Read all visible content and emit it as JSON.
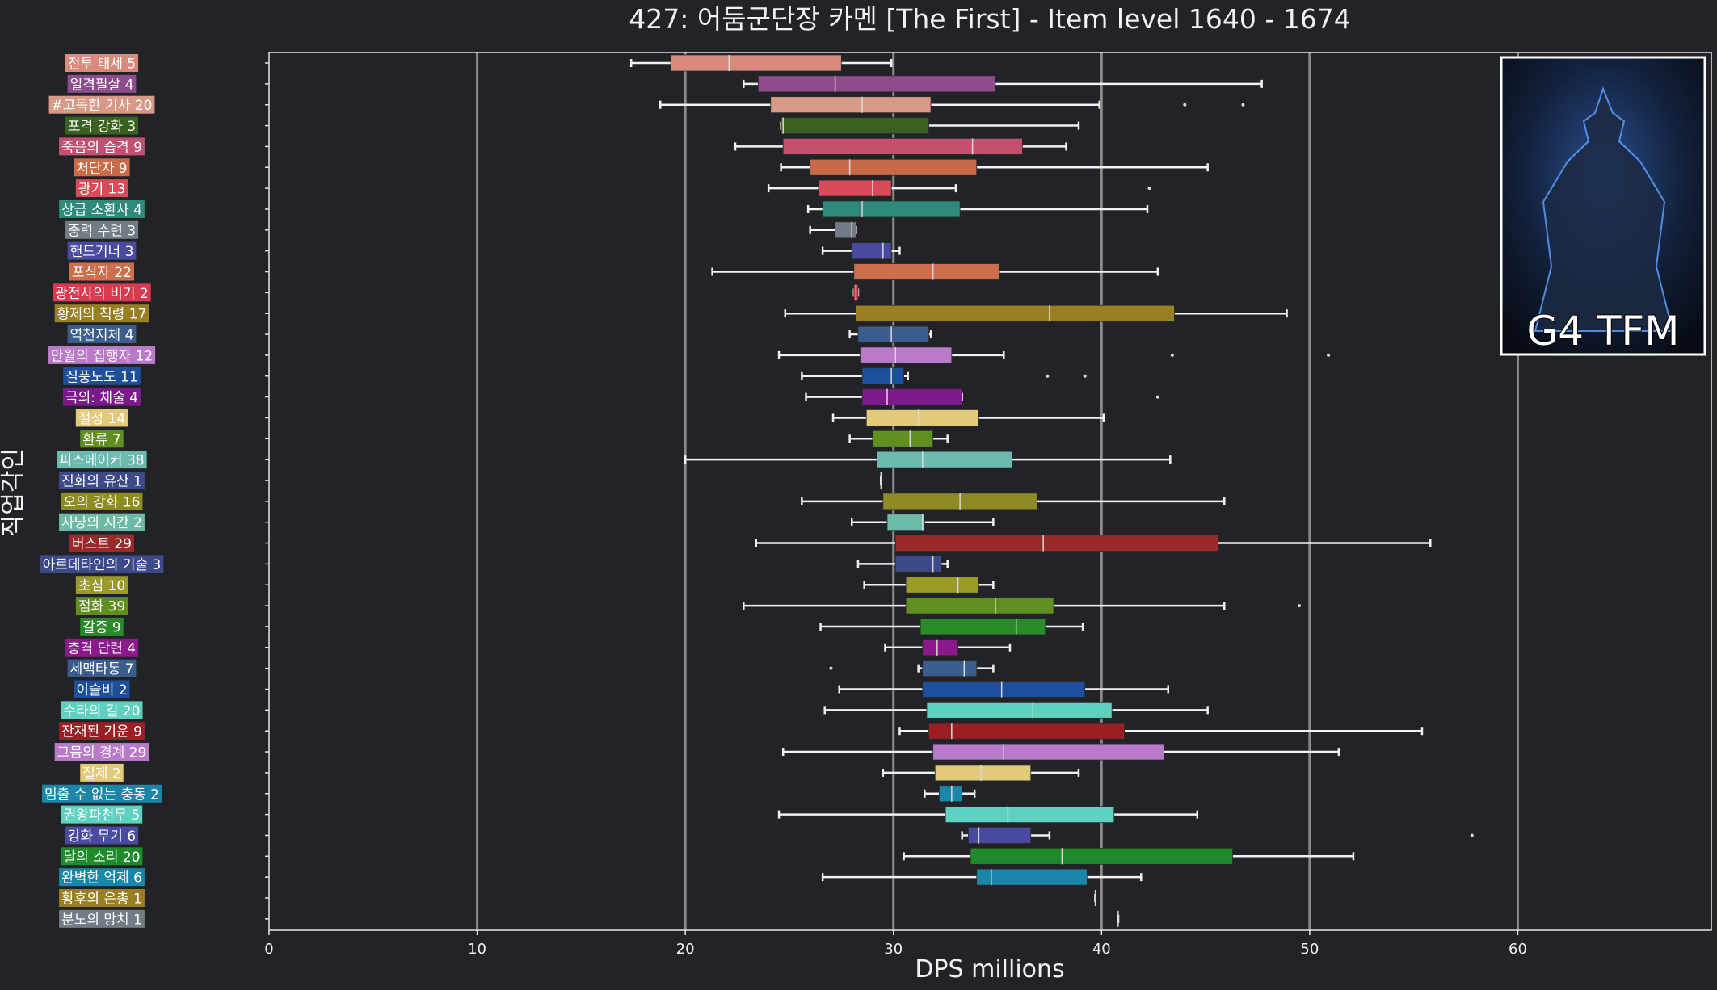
{
  "chart_data": {
    "type": "boxplot",
    "title": "427: 어둠군단장 카멘 [The First] - Item level 1640 - 1674",
    "xlabel": "DPS millions",
    "ylabel": "직업각인",
    "xlim": [
      0,
      69.3
    ],
    "xticks": [
      0,
      10,
      20,
      30,
      40,
      50,
      60
    ],
    "grid": "vertical",
    "badge_text": "G4 TFM",
    "rows": [
      {
        "label": "전투 태세 5",
        "color": "#d98a7c",
        "q1": 19.3,
        "median": 22.1,
        "q3": 27.5,
        "whislo": 17.4,
        "whishi": 29.9,
        "fliers": []
      },
      {
        "label": "일격필살 4",
        "color": "#8e4c8c",
        "q1": 23.5,
        "median": 27.2,
        "q3": 34.9,
        "whislo": 22.8,
        "whishi": 47.7,
        "fliers": []
      },
      {
        "label": "#고독한 기사 20",
        "color": "#d89a87",
        "q1": 24.1,
        "median": 28.5,
        "q3": 31.8,
        "whislo": 18.8,
        "whishi": 39.9,
        "fliers": [
          44.0,
          46.8
        ]
      },
      {
        "label": "포격 강화 3",
        "color": "#39611f",
        "q1": 24.6,
        "median": 24.7,
        "q3": 31.7,
        "whislo": 24.6,
        "whishi": 38.9,
        "fliers": []
      },
      {
        "label": "죽음의 습격 9",
        "color": "#c2506f",
        "q1": 24.7,
        "median": 33.8,
        "q3": 36.2,
        "whislo": 22.4,
        "whishi": 38.3,
        "fliers": []
      },
      {
        "label": "처단자 9",
        "color": "#c96b47",
        "q1": 26.0,
        "median": 27.9,
        "q3": 34.0,
        "whislo": 24.6,
        "whishi": 45.1,
        "fliers": []
      },
      {
        "label": "광기 13",
        "color": "#d94a5a",
        "q1": 26.4,
        "median": 29.0,
        "q3": 29.9,
        "whislo": 24.0,
        "whishi": 33.0,
        "fliers": [
          42.3
        ]
      },
      {
        "label": "상급 소환사 4",
        "color": "#2e8a7a",
        "q1": 26.6,
        "median": 28.5,
        "q3": 33.2,
        "whislo": 25.9,
        "whishi": 42.2,
        "fliers": []
      },
      {
        "label": "중력 수련 3",
        "color": "#737c86",
        "q1": 27.2,
        "median": 28.0,
        "q3": 28.2,
        "whislo": 26.0,
        "whishi": 28.2,
        "fliers": []
      },
      {
        "label": "핸드거너 3",
        "color": "#4a4aa0",
        "q1": 28.0,
        "median": 29.5,
        "q3": 29.9,
        "whislo": 26.6,
        "whishi": 30.3,
        "fliers": []
      },
      {
        "label": "포식자 22",
        "color": "#cc6f4d",
        "q1": 28.1,
        "median": 31.9,
        "q3": 35.1,
        "whislo": 21.3,
        "whishi": 42.7,
        "fliers": []
      },
      {
        "label": "광전사의 비기 2",
        "color": "#d93a50",
        "q1": 28.1,
        "median": 28.2,
        "q3": 28.3,
        "whislo": 28.1,
        "whishi": 28.3,
        "fliers": []
      },
      {
        "label": "황제의 칙령 17",
        "color": "#9a7e24",
        "q1": 28.2,
        "median": 37.5,
        "q3": 43.5,
        "whislo": 24.8,
        "whishi": 48.9,
        "fliers": []
      },
      {
        "label": "역천지체 4",
        "color": "#3b5d8e",
        "q1": 28.3,
        "median": 29.9,
        "q3": 31.7,
        "whislo": 27.9,
        "whishi": 31.8,
        "fliers": []
      },
      {
        "label": "만월의 집행자 12",
        "color": "#b87ac9",
        "q1": 28.4,
        "median": 30.1,
        "q3": 32.8,
        "whislo": 24.5,
        "whishi": 35.3,
        "fliers": [
          43.4,
          50.9
        ]
      },
      {
        "label": "질풍노도 11",
        "color": "#1d4f9c",
        "q1": 28.5,
        "median": 29.9,
        "q3": 30.5,
        "whislo": 25.6,
        "whishi": 30.7,
        "fliers": [
          37.4,
          39.2
        ]
      },
      {
        "label": "극의: 체술 4",
        "color": "#7c1a8c",
        "q1": 28.5,
        "median": 29.7,
        "q3": 33.3,
        "whislo": 25.8,
        "whishi": 33.3,
        "fliers": [
          42.7
        ]
      },
      {
        "label": "절정 14",
        "color": "#e3c97a",
        "q1": 28.7,
        "median": 31.2,
        "q3": 34.1,
        "whislo": 27.1,
        "whishi": 40.1,
        "fliers": []
      },
      {
        "label": "환류 7",
        "color": "#5f8f1f",
        "q1": 29.0,
        "median": 30.8,
        "q3": 31.9,
        "whislo": 27.9,
        "whishi": 32.6,
        "fliers": []
      },
      {
        "label": "피스메이커 38",
        "color": "#6dbab0",
        "q1": 29.2,
        "median": 31.4,
        "q3": 35.7,
        "whislo": 20.0,
        "whishi": 43.3,
        "fliers": []
      },
      {
        "label": "진화의 유산 1",
        "color": "#3d4a8a",
        "q1": 29.4,
        "median": 29.4,
        "q3": 29.4,
        "whislo": 29.4,
        "whishi": 29.4,
        "fliers": []
      },
      {
        "label": "오의 강화 16",
        "color": "#8f8b24",
        "q1": 29.5,
        "median": 33.2,
        "q3": 36.9,
        "whislo": 25.6,
        "whishi": 45.9,
        "fliers": []
      },
      {
        "label": "사냥의 시간 2",
        "color": "#6dbaa8",
        "q1": 29.7,
        "median": 31.4,
        "q3": 31.5,
        "whislo": 28.0,
        "whishi": 34.8,
        "fliers": []
      },
      {
        "label": "버스트 29",
        "color": "#9a2a2a",
        "q1": 30.1,
        "median": 37.2,
        "q3": 45.6,
        "whislo": 23.4,
        "whishi": 55.8,
        "fliers": []
      },
      {
        "label": "아르데타인의 기술 3",
        "color": "#3d4a8a",
        "q1": 30.1,
        "median": 31.9,
        "q3": 32.3,
        "whislo": 28.3,
        "whishi": 32.6,
        "fliers": []
      },
      {
        "label": "초심 10",
        "color": "#9a9a2a",
        "q1": 30.6,
        "median": 33.1,
        "q3": 34.1,
        "whislo": 28.6,
        "whishi": 34.8,
        "fliers": []
      },
      {
        "label": "점화 39",
        "color": "#5f8f1f",
        "q1": 30.6,
        "median": 34.9,
        "q3": 37.7,
        "whislo": 22.8,
        "whishi": 45.9,
        "fliers": [
          49.5
        ]
      },
      {
        "label": "갈증 9",
        "color": "#2a8a2a",
        "q1": 31.3,
        "median": 35.9,
        "q3": 37.3,
        "whislo": 26.5,
        "whishi": 39.1,
        "fliers": []
      },
      {
        "label": "충격 단련 4",
        "color": "#8a1a8a",
        "q1": 31.4,
        "median": 32.1,
        "q3": 33.1,
        "whislo": 29.6,
        "whishi": 35.6,
        "fliers": []
      },
      {
        "label": "세맥타통 7",
        "color": "#3b5d8e",
        "q1": 31.4,
        "median": 33.4,
        "q3": 34.0,
        "whislo": 31.2,
        "whishi": 34.8,
        "fliers": [
          27.0
        ]
      },
      {
        "label": "이슬비 2",
        "color": "#1d4f9c",
        "q1": 31.4,
        "median": 35.2,
        "q3": 39.2,
        "whislo": 27.4,
        "whishi": 43.2,
        "fliers": []
      },
      {
        "label": "수라의 길 20",
        "color": "#5fd1c0",
        "q1": 31.6,
        "median": 36.7,
        "q3": 40.5,
        "whislo": 26.7,
        "whishi": 45.1,
        "fliers": []
      },
      {
        "label": "잔재된 기운 9",
        "color": "#9a1f24",
        "q1": 31.7,
        "median": 32.8,
        "q3": 41.1,
        "whislo": 30.3,
        "whishi": 55.4,
        "fliers": []
      },
      {
        "label": "그믐의 경계 29",
        "color": "#b87ac9",
        "q1": 31.9,
        "median": 35.3,
        "q3": 43.0,
        "whislo": 24.7,
        "whishi": 51.4,
        "fliers": []
      },
      {
        "label": "절제 2",
        "color": "#e3c97a",
        "q1": 32.0,
        "median": 34.2,
        "q3": 36.6,
        "whislo": 29.5,
        "whishi": 38.9,
        "fliers": []
      },
      {
        "label": "멈출 수 없는 충동 2",
        "color": "#1a86a8",
        "q1": 32.2,
        "median": 32.8,
        "q3": 33.3,
        "whislo": 31.5,
        "whishi": 33.9,
        "fliers": []
      },
      {
        "label": "권왕파천무 5",
        "color": "#5fd1c0",
        "q1": 32.5,
        "median": 35.5,
        "q3": 40.6,
        "whislo": 24.5,
        "whishi": 44.6,
        "fliers": []
      },
      {
        "label": "강화 무기 6",
        "color": "#4a4aa0",
        "q1": 33.6,
        "median": 34.1,
        "q3": 36.6,
        "whislo": 33.3,
        "whishi": 37.5,
        "fliers": [
          57.8
        ]
      },
      {
        "label": "달의 소리 20",
        "color": "#1f8a2a",
        "q1": 33.7,
        "median": 38.1,
        "q3": 46.3,
        "whislo": 30.5,
        "whishi": 52.1,
        "fliers": []
      },
      {
        "label": "완벽한 억제 6",
        "color": "#1a86a8",
        "q1": 34.0,
        "median": 34.7,
        "q3": 39.3,
        "whislo": 26.6,
        "whishi": 41.9,
        "fliers": []
      },
      {
        "label": "황후의 은총 1",
        "color": "#9a7e24",
        "q1": 39.7,
        "median": 39.7,
        "q3": 39.7,
        "whislo": 39.7,
        "whishi": 39.7,
        "fliers": []
      },
      {
        "label": "분노의 망치 1",
        "color": "#737c86",
        "q1": 40.8,
        "median": 40.8,
        "q3": 40.8,
        "whislo": 40.8,
        "whishi": 40.8,
        "fliers": []
      }
    ]
  }
}
